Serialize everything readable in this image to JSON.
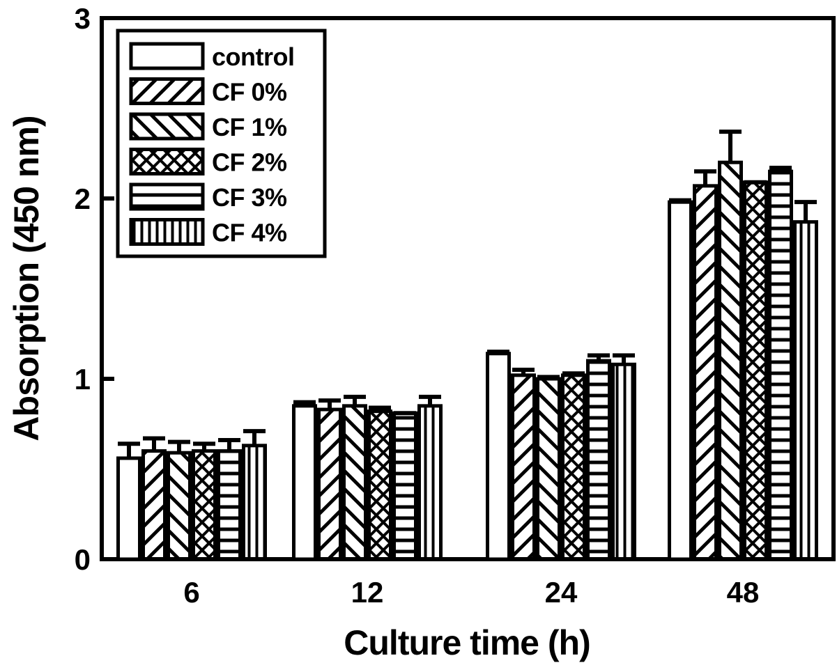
{
  "chart_data": {
    "type": "bar",
    "title": "",
    "xlabel": "Culture time (h)",
    "ylabel": "Absorption (450 nm)",
    "ylim": [
      0,
      3
    ],
    "yticks": [
      0,
      1,
      2,
      3
    ],
    "ytick_labels": [
      "0",
      "1",
      "2",
      "3"
    ],
    "categories": [
      "6",
      "12",
      "24",
      "48"
    ],
    "grid": false,
    "legend_position": "top-left",
    "series": [
      {
        "name": "control",
        "pattern": "none",
        "values": [
          0.56,
          0.85,
          1.14,
          1.98
        ],
        "errors": [
          0.08,
          0.02,
          0.01,
          0.01
        ]
      },
      {
        "name": "CF 0%",
        "pattern": "diagonal-up",
        "values": [
          0.6,
          0.83,
          1.02,
          2.07
        ],
        "errors": [
          0.07,
          0.05,
          0.03,
          0.08
        ]
      },
      {
        "name": "CF 1%",
        "pattern": "diagonal-down",
        "values": [
          0.59,
          0.85,
          1.0,
          2.2
        ],
        "errors": [
          0.06,
          0.05,
          0.01,
          0.17
        ]
      },
      {
        "name": "CF 2%",
        "pattern": "crosshatch",
        "values": [
          0.6,
          0.82,
          1.02,
          2.09
        ],
        "errors": [
          0.04,
          0.02,
          0.01,
          0.0
        ]
      },
      {
        "name": "CF 3%",
        "pattern": "horizontal",
        "values": [
          0.6,
          0.81,
          1.1,
          2.15
        ],
        "errors": [
          0.06,
          0.0,
          0.03,
          0.02
        ]
      },
      {
        "name": "CF 4%",
        "pattern": "vertical",
        "values": [
          0.63,
          0.85,
          1.08,
          1.87
        ],
        "errors": [
          0.08,
          0.05,
          0.05,
          0.11
        ]
      }
    ]
  }
}
